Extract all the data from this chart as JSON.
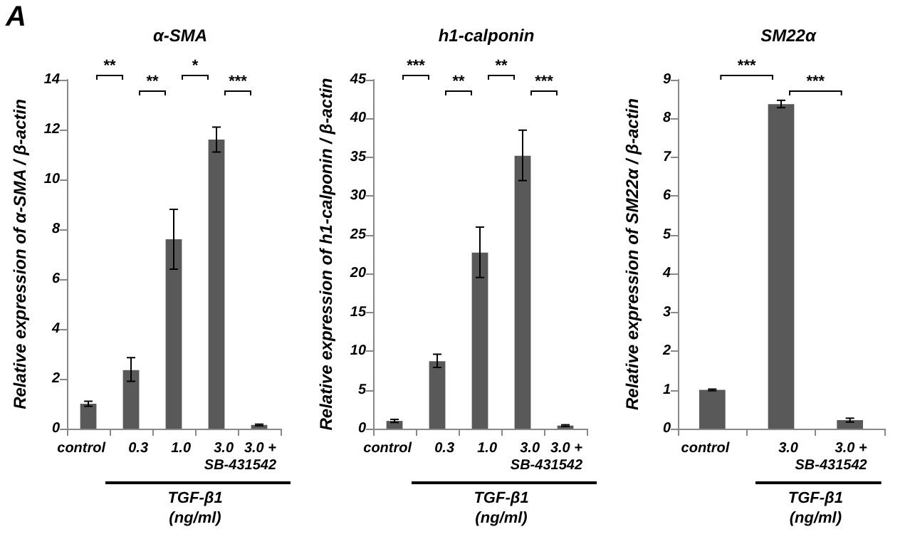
{
  "chart_data": [
    {
      "type": "bar",
      "title": "α-SMA",
      "ylabel": "Relative expression of α-SMA / β-actin",
      "xlabel": "TGF-β1\n(ng/ml)",
      "categories": [
        "control",
        "0.3",
        "1.0",
        "3.0",
        "3.0 +\nSB-431542"
      ],
      "values": [
        1.0,
        2.35,
        7.6,
        11.6,
        0.15
      ],
      "errors": [
        [
          0.9,
          1.1
        ],
        [
          1.9,
          2.85
        ],
        [
          6.4,
          8.8
        ],
        [
          11.1,
          12.1
        ],
        [
          0.12,
          0.18
        ]
      ],
      "color": "#595959",
      "ylim": [
        0,
        14
      ],
      "yticks": [
        0,
        2,
        4,
        6,
        8,
        10,
        12,
        14
      ],
      "grid": false,
      "annotations": [
        "A",
        "**",
        "**",
        "*",
        "***"
      ]
    },
    {
      "type": "bar",
      "title": "h1-calponin",
      "ylabel": "Relative expression of h1-calponin / β-actin",
      "xlabel": "TGF-β1\n(ng/ml)",
      "categories": [
        "control",
        "0.3",
        "1.0",
        "3.0",
        "3.0 +\nSB-431542"
      ],
      "values": [
        1.0,
        8.7,
        22.7,
        35.2,
        0.4
      ],
      "errors": [
        [
          0.8,
          1.2
        ],
        [
          7.9,
          9.6
        ],
        [
          19.5,
          26.0
        ],
        [
          32.0,
          38.5
        ],
        [
          0.3,
          0.5
        ]
      ],
      "color": "#595959",
      "ylim": [
        0,
        45
      ],
      "yticks": [
        0,
        5,
        10,
        15,
        20,
        25,
        30,
        35,
        40,
        45
      ],
      "grid": false,
      "annotations": [
        "***",
        "**",
        "**",
        "***"
      ]
    },
    {
      "type": "bar",
      "title": "SM22α",
      "ylabel": "Relative expression of SM22α / β-actin",
      "xlabel": "TGF-β1\n(ng/ml)",
      "categories": [
        "control",
        "3.0",
        "3.0 +\nSB-431542"
      ],
      "values": [
        1.0,
        8.37,
        0.22
      ],
      "errors": [
        [
          0.98,
          1.02
        ],
        [
          8.28,
          8.47
        ],
        [
          0.17,
          0.27
        ]
      ],
      "color": "#595959",
      "ylim": [
        0,
        9
      ],
      "yticks": [
        0,
        1,
        2,
        3,
        4,
        5,
        6,
        7,
        8,
        9
      ],
      "grid": false,
      "annotations": [
        "***",
        "***"
      ]
    }
  ]
}
